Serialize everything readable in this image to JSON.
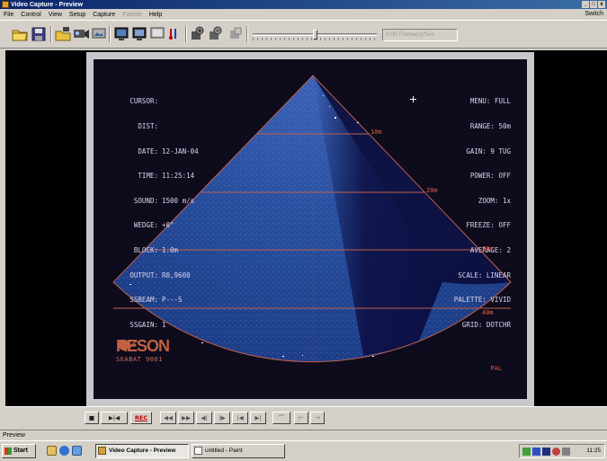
{
  "window": {
    "title": "Video Capture - Preview",
    "controls": [
      "_",
      "%",
      "x"
    ]
  },
  "menu": {
    "items": [
      {
        "label": "File",
        "enabled": true
      },
      {
        "label": "Control",
        "enabled": true
      },
      {
        "label": "View",
        "enabled": true
      },
      {
        "label": "Setup",
        "enabled": true
      },
      {
        "label": "Capture",
        "enabled": true
      },
      {
        "label": "Palette",
        "enabled": false
      },
      {
        "label": "Help",
        "enabled": true
      }
    ],
    "right_link": "Switch"
  },
  "toolbar": {
    "icons": [
      "open-folder-icon",
      "save-disk-icon",
      "capture-folder-icon",
      "video-source-icon",
      "video-format-icon",
      "monitor-icon",
      "display-icon",
      "overlay-icon",
      "audio-icon",
      "capture-settings-icon",
      "compression-icon",
      "preview-icon"
    ],
    "frame_rate": "0.00 Frame(s)/Sec",
    "slider_position": 0.5
  },
  "sonar": {
    "left_fields": [
      {
        "key": "CURSOR:",
        "value": ""
      },
      {
        "key": "DIST:",
        "value": ""
      },
      {
        "key": "DATE:",
        "value": "12-JAN-04"
      },
      {
        "key": "TIME:",
        "value": "11:25:14"
      },
      {
        "key": "SOUND:",
        "value": "1500 m/s"
      },
      {
        "key": "WEDGE:",
        "value": "+0°"
      },
      {
        "key": "BLOCK:",
        "value": "1.0m"
      },
      {
        "key": "OUTPUT:",
        "value": "R0,9600"
      },
      {
        "key": "SSBEAM:",
        "value": "P---S"
      },
      {
        "key": "SSGAIN:",
        "value": "1"
      }
    ],
    "right_fields": [
      {
        "key": "MENU:",
        "value": "FULL"
      },
      {
        "key": "RANGE:",
        "value": "50m"
      },
      {
        "key": "GAIN:",
        "value": "9 TUG"
      },
      {
        "key": "POWER:",
        "value": "OFF"
      },
      {
        "key": "ZOOM:",
        "value": "1x"
      },
      {
        "key": "FREEZE:",
        "value": "OFF"
      },
      {
        "key": "AVERAGE:",
        "value": "2"
      },
      {
        "key": "SCALE:",
        "value": "LINEAR"
      },
      {
        "key": "PALETTE:",
        "value": "VIVID"
      },
      {
        "key": "GRID:",
        "value": "DOTCHR"
      }
    ],
    "range_labels": [
      "10m",
      "20m",
      "30m",
      "40m"
    ],
    "logo_brand": "RESON",
    "logo_model": "SEABAT 9001",
    "video_standard": "PAL",
    "colors": {
      "water": "#1f3f8a",
      "background": "#0d0b1c",
      "grid": "#c0604a",
      "text": "#ded6ee"
    }
  },
  "controls": [
    {
      "name": "stop-button",
      "label": "■"
    },
    {
      "name": "play-pause-button",
      "label": "▶|◀"
    },
    {
      "name": "record-button",
      "label": "REC"
    },
    {
      "name": "rewind-button",
      "label": "◀◀"
    },
    {
      "name": "fast-forward-button",
      "label": "▶▶"
    },
    {
      "name": "step-back-button",
      "label": "◀|"
    },
    {
      "name": "step-forward-button",
      "label": "|▶"
    },
    {
      "name": "go-start-button",
      "label": "|◀"
    },
    {
      "name": "go-end-button",
      "label": "▶|"
    },
    {
      "name": "clip-button",
      "label": "⌒"
    },
    {
      "name": "mark-in-button",
      "label": "⊢"
    },
    {
      "name": "mark-out-button",
      "label": "⊣"
    }
  ],
  "status": {
    "text": "Preview"
  },
  "taskbar": {
    "start": "Start",
    "tasks": [
      {
        "label": "Video Capture - Preview",
        "active": true
      },
      {
        "label": "untitled - Paint",
        "active": false
      }
    ],
    "clock": "11:25"
  }
}
